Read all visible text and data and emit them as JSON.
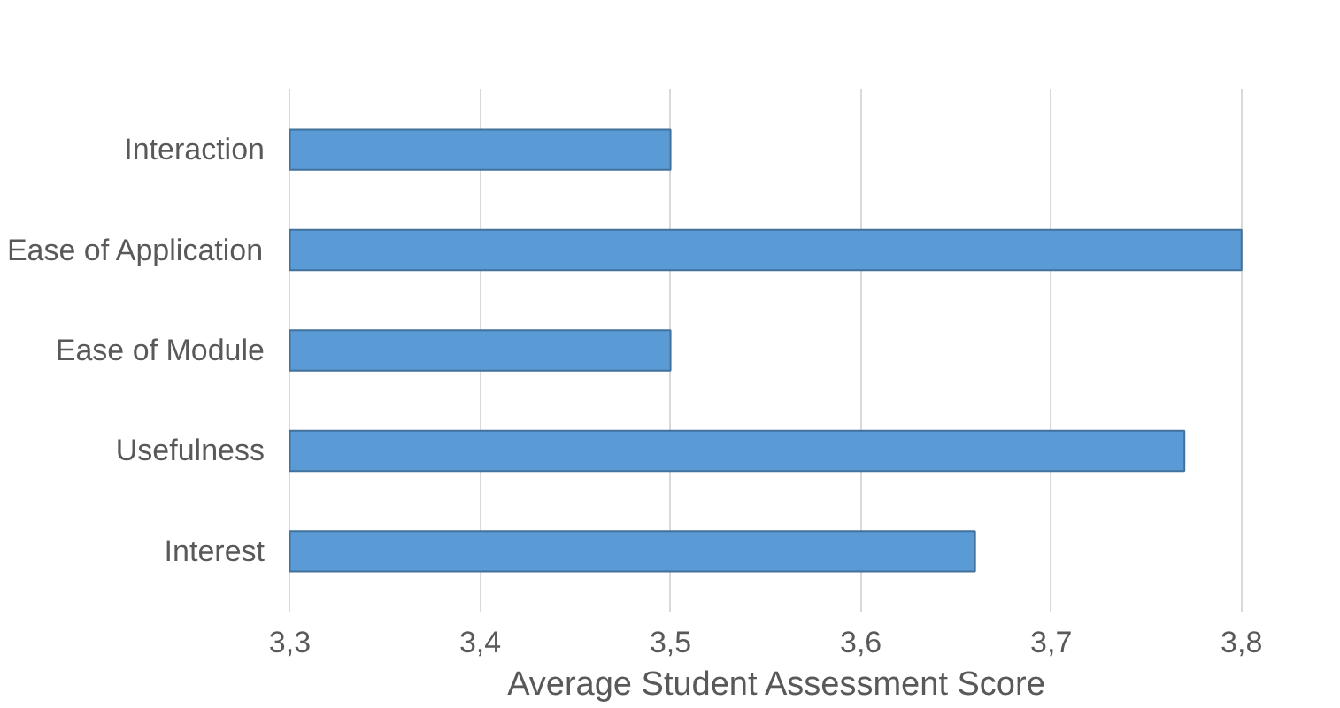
{
  "chart_data": {
    "type": "bar",
    "orientation": "horizontal",
    "categories": [
      "Interaction",
      "Ease of Application",
      "Ease of Module",
      "Usefulness",
      "Interest"
    ],
    "values": [
      3.5,
      3.8,
      3.5,
      3.77,
      3.66
    ],
    "color": "#5b9bd5",
    "xlabel": "Average Student Assessment Score",
    "xlim": [
      3.3,
      3.8
    ],
    "xticks": [
      {
        "value": 3.3,
        "label": "3,3"
      },
      {
        "value": 3.4,
        "label": "3,4"
      },
      {
        "value": 3.5,
        "label": "3,5"
      },
      {
        "value": 3.6,
        "label": "3,6"
      },
      {
        "value": 3.7,
        "label": "3,7"
      },
      {
        "value": 3.8,
        "label": "3,8"
      }
    ],
    "grid": "x"
  }
}
